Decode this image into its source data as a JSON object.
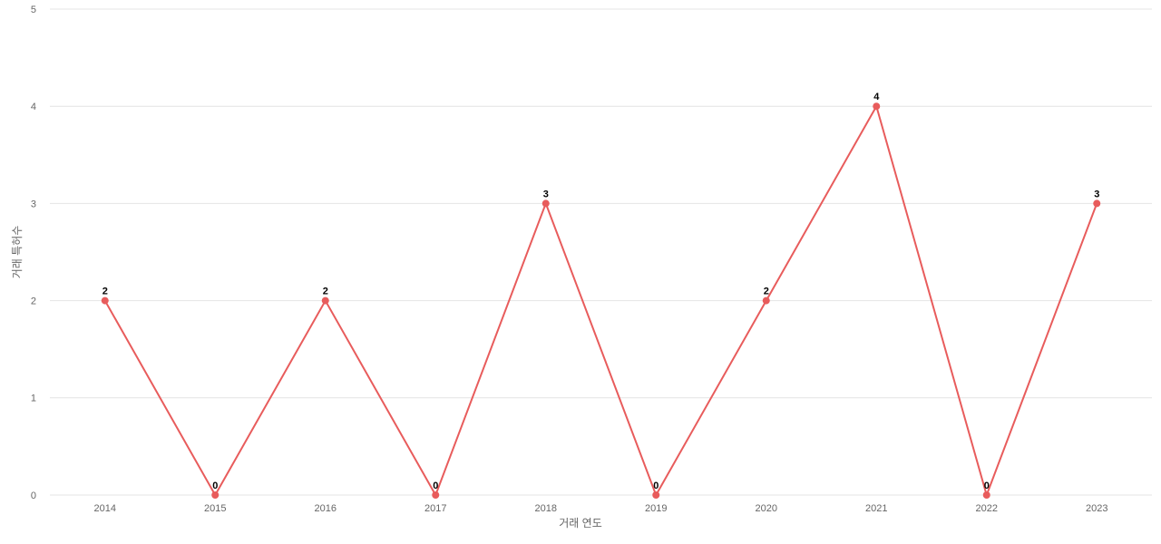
{
  "chart_data": {
    "type": "line",
    "x_label": "거래 연도",
    "y_label": "거래 특허수",
    "categories": [
      "2014",
      "2015",
      "2016",
      "2017",
      "2018",
      "2019",
      "2020",
      "2021",
      "2022",
      "2023"
    ],
    "values": [
      2,
      0,
      2,
      0,
      3,
      0,
      2,
      4,
      0,
      3
    ],
    "color": "#e85c5c",
    "ylim": [
      0,
      5
    ],
    "yticks": [
      0,
      1,
      2,
      3,
      4,
      5
    ],
    "grid": true
  }
}
